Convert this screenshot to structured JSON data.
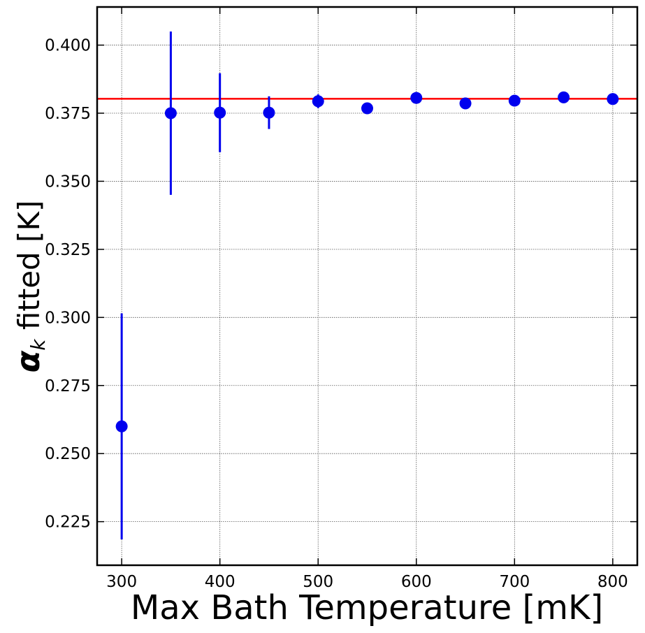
{
  "chart_data": {
    "type": "scatter",
    "title": "",
    "xlabel": "Max Bath Temperature [mK]",
    "ylabel_symbol": "α",
    "ylabel_subscript": "k",
    "ylabel_rest": " fitted [K]",
    "xlim": [
      275,
      825
    ],
    "ylim": [
      0.209,
      0.414
    ],
    "x_ticks": [
      300,
      400,
      500,
      600,
      700,
      800
    ],
    "y_ticks": [
      0.225,
      0.25,
      0.275,
      0.3,
      0.325,
      0.35,
      0.375,
      0.4
    ],
    "x_tick_labels": [
      "300",
      "400",
      "500",
      "600",
      "700",
      "800"
    ],
    "y_tick_labels": [
      "0.225",
      "0.250",
      "0.275",
      "0.300",
      "0.325",
      "0.350",
      "0.375",
      "0.400"
    ],
    "grid": true,
    "series": [
      {
        "x": [
          300,
          350,
          400,
          450,
          500,
          550,
          600,
          650,
          700,
          750,
          800
        ],
        "y": [
          0.26,
          0.375,
          0.3752,
          0.3752,
          0.3794,
          0.3768,
          0.3806,
          0.3786,
          0.3796,
          0.3808,
          0.3802
        ],
        "yerr": [
          0.0415,
          0.03,
          0.0145,
          0.006,
          0.0025,
          0.001,
          0.001,
          0.001,
          0.001,
          0.001,
          0.001
        ],
        "color": "#0000ee"
      }
    ],
    "reference_line": {
      "y": 0.3803,
      "color": "#ff0000"
    }
  }
}
